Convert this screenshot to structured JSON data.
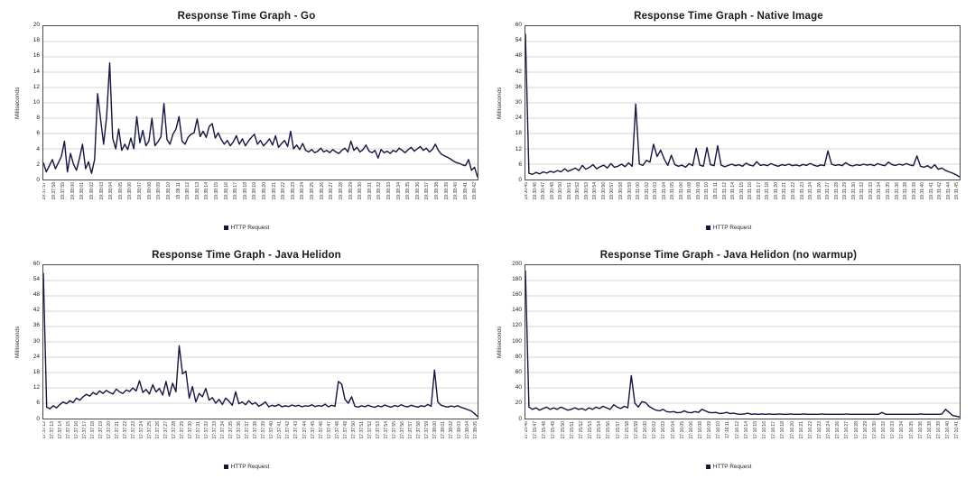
{
  "page": {
    "background": "#ffffff",
    "line_color": "#15153f",
    "grid_color": "#d6d6d6"
  },
  "chart_data": [
    {
      "type": "line",
      "title": "Response Time Graph - Go",
      "ylabel": "Milliseconds",
      "xlabel": "",
      "ylim": [
        0,
        20
      ],
      "ytick_step": 2,
      "grid": true,
      "legend_position": "bottom",
      "line_color": "#15153f",
      "grid_color": "#d6d6d6",
      "x_labels": [
        "19:37:57",
        "19:37:58",
        "19:37:59",
        "19:38:00",
        "19:38:01",
        "19:38:02",
        "19:38:03",
        "19:38:04",
        "19:38:05",
        "19:38:06",
        "19:38:07",
        "19:38:08",
        "19:38:09",
        "19:38:10",
        "19:38:11",
        "19:38:12",
        "19:38:13",
        "19:38:14",
        "19:38:15",
        "19:38:16",
        "19:38:17",
        "19:38:18",
        "19:38:19",
        "19:38:20",
        "19:38:21",
        "19:38:22",
        "19:38:23",
        "19:38:24",
        "19:38:25",
        "19:38:26",
        "19:38:27",
        "19:38:28",
        "19:38:29",
        "19:38:30",
        "19:38:31",
        "19:38:32",
        "19:38:33",
        "19:38:34",
        "19:38:35",
        "19:38:36",
        "19:38:37",
        "19:38:38",
        "19:38:39",
        "19:38:40",
        "19:38:41",
        "19:38:42"
      ],
      "series": [
        {
          "name": "HTTP Request",
          "values": [
            2.2,
            1.0,
            1.8,
            2.6,
            1.4,
            2.2,
            3.0,
            5.0,
            1.0,
            3.4,
            2.0,
            1.2,
            2.8,
            4.6,
            1.4,
            2.3,
            0.8,
            2.6,
            11.2,
            7.8,
            4.6,
            8.2,
            15.2,
            5.4,
            4.0,
            6.6,
            3.8,
            4.6,
            3.9,
            5.4,
            4.0,
            8.2,
            4.8,
            6.4,
            4.4,
            5.0,
            8.0,
            4.4,
            4.9,
            5.6,
            9.9,
            5.2,
            4.6,
            5.9,
            6.6,
            8.2,
            5.0,
            4.6,
            5.5,
            5.9,
            6.1,
            7.9,
            5.6,
            6.3,
            5.5,
            6.9,
            7.3,
            5.4,
            6.1,
            5.2,
            4.6,
            5.1,
            4.4,
            4.9,
            5.7,
            4.6,
            5.3,
            4.4,
            5.0,
            5.5,
            5.9,
            4.6,
            5.1,
            4.4,
            4.8,
            5.3,
            4.5,
            5.7,
            4.2,
            4.7,
            5.1,
            4.3,
            6.3,
            4.0,
            4.5,
            3.9,
            4.7,
            3.8,
            3.6,
            3.9,
            3.5,
            3.7,
            4.1,
            3.6,
            3.8,
            3.5,
            3.9,
            3.6,
            3.4,
            3.8,
            4.1,
            3.6,
            5.0,
            3.8,
            4.2,
            3.6,
            3.9,
            4.5,
            3.7,
            3.5,
            3.8,
            2.8,
            3.9,
            3.5,
            3.7,
            3.4,
            3.8,
            3.6,
            4.1,
            3.8,
            3.5,
            3.9,
            4.2,
            3.7,
            4.0,
            4.3,
            3.8,
            4.1,
            3.6,
            3.9,
            4.6,
            3.8,
            3.3,
            3.1,
            2.9,
            2.7,
            2.4,
            2.2,
            2.1,
            1.9,
            1.8,
            2.6,
            1.2,
            1.6,
            0.3
          ]
        }
      ]
    },
    {
      "type": "line",
      "title": "Response Time Graph - Native Image",
      "ylabel": "Milliseconds",
      "xlabel": "",
      "ylim": [
        0,
        60
      ],
      "ytick_step": 6,
      "grid": true,
      "legend_position": "bottom",
      "line_color": "#15153f",
      "grid_color": "#d6d6d6",
      "x_labels": [
        "19:30:45",
        "19:30:46",
        "19:30:47",
        "19:30:48",
        "19:30:50",
        "19:30:51",
        "19:30:52",
        "19:30:53",
        "19:30:54",
        "19:30:56",
        "19:30:57",
        "19:30:58",
        "19:30:59",
        "19:31:00",
        "19:31:02",
        "19:31:03",
        "19:31:04",
        "19:31:05",
        "19:31:06",
        "19:31:08",
        "19:31:09",
        "19:31:10",
        "19:31:11",
        "19:31:12",
        "19:31:14",
        "19:31:15",
        "19:31:16",
        "19:31:17",
        "19:31:18",
        "19:31:20",
        "19:31:21",
        "19:31:22",
        "19:31:23",
        "19:31:24",
        "19:31:26",
        "19:31:27",
        "19:31:28",
        "19:31:29",
        "19:31:30",
        "19:31:32",
        "19:31:33",
        "19:31:34",
        "19:31:35",
        "19:31:36",
        "19:31:38",
        "19:31:39",
        "19:31:40",
        "19:31:41",
        "19:31:42",
        "19:31:44",
        "19:31:45"
      ],
      "series": [
        {
          "name": "HTTP Request",
          "values": [
            57,
            2.4,
            2.0,
            2.8,
            2.2,
            3.0,
            2.5,
            3.2,
            2.8,
            3.5,
            3.0,
            4.2,
            3.2,
            3.8,
            4.5,
            3.5,
            5.5,
            4.0,
            4.8,
            5.8,
            4.2,
            5.0,
            5.6,
            4.5,
            6.2,
            4.8,
            5.2,
            6.0,
            5.0,
            6.5,
            5.2,
            29.5,
            6.0,
            5.5,
            7.5,
            6.8,
            13.8,
            9.0,
            11.5,
            8.0,
            5.5,
            9.5,
            5.8,
            5.2,
            5.6,
            4.8,
            6.2,
            5.4,
            12.2,
            5.6,
            5.2,
            12.5,
            5.8,
            5.4,
            13.2,
            5.6,
            5.0,
            5.5,
            6.0,
            5.4,
            5.8,
            5.2,
            6.4,
            5.6,
            5.3,
            7.0,
            5.5,
            5.8,
            5.4,
            6.2,
            5.6,
            5.2,
            5.8,
            5.5,
            6.0,
            5.4,
            5.7,
            5.3,
            5.9,
            5.5,
            6.3,
            5.6,
            5.2,
            5.7,
            5.4,
            11.2,
            6.0,
            5.5,
            5.8,
            5.4,
            6.6,
            5.6,
            5.3,
            5.8,
            5.5,
            6.0,
            5.6,
            5.9,
            5.4,
            6.2,
            5.7,
            5.4,
            6.8,
            5.8,
            5.5,
            6.0,
            5.6,
            6.2,
            5.7,
            5.4,
            9.2,
            5.2,
            4.8,
            5.4,
            4.4,
            5.8,
            4.0,
            4.5,
            3.6,
            3.0,
            2.5,
            1.8,
            1.0
          ]
        }
      ]
    },
    {
      "type": "line",
      "title": "Response Time Graph - Java Helidon",
      "ylabel": "Milliseconds",
      "xlabel": "",
      "ylim": [
        0,
        60
      ],
      "ytick_step": 6,
      "grid": true,
      "legend_position": "bottom",
      "line_color": "#15153f",
      "grid_color": "#d6d6d6",
      "x_labels": [
        "17:37:12",
        "17:37:13",
        "17:37:14",
        "17:37:15",
        "17:37:16",
        "17:37:17",
        "17:37:18",
        "17:37:19",
        "17:37:20",
        "17:37:21",
        "17:37:22",
        "17:37:23",
        "17:37:24",
        "17:37:25",
        "17:37:26",
        "17:37:27",
        "17:37:28",
        "17:37:29",
        "17:37:30",
        "17:37:31",
        "17:37:32",
        "17:37:33",
        "17:37:34",
        "17:37:35",
        "17:37:36",
        "17:37:37",
        "17:37:38",
        "17:37:39",
        "17:37:40",
        "17:37:41",
        "17:37:42",
        "17:37:43",
        "17:37:44",
        "17:37:45",
        "17:37:46",
        "17:37:47",
        "17:37:48",
        "17:37:49",
        "17:37:50",
        "17:37:51",
        "17:37:52",
        "17:37:53",
        "17:37:54",
        "17:37:55",
        "17:37:56",
        "17:37:57",
        "17:37:58",
        "17:37:59",
        "17:38:00",
        "17:38:01",
        "17:38:02",
        "17:38:03",
        "17:38:04",
        "17:38:05"
      ],
      "series": [
        {
          "name": "HTTP Request",
          "values": [
            57,
            4.5,
            3.8,
            5.0,
            4.2,
            5.5,
            6.5,
            5.8,
            7.0,
            6.2,
            8.0,
            7.2,
            8.5,
            9.5,
            8.8,
            10.2,
            9.4,
            10.8,
            9.8,
            11.0,
            10.2,
            9.6,
            11.5,
            10.4,
            9.8,
            11.2,
            10.6,
            12.0,
            10.8,
            14.8,
            10.2,
            11.4,
            9.6,
            13.2,
            10.4,
            11.8,
            9.2,
            14.5,
            8.8,
            13.8,
            10.5,
            28.5,
            17.5,
            18.5,
            8.0,
            12.5,
            6.5,
            9.8,
            8.5,
            11.8,
            7.2,
            8.2,
            6.0,
            7.5,
            5.5,
            8.0,
            6.8,
            5.2,
            10.5,
            5.8,
            6.5,
            5.4,
            7.0,
            5.6,
            6.2,
            4.8,
            5.5,
            6.5,
            4.6,
            5.2,
            4.8,
            5.5,
            4.6,
            5.0,
            4.7,
            5.3,
            4.8,
            5.2,
            4.6,
            5.0,
            4.8,
            5.4,
            4.7,
            5.1,
            4.8,
            5.6,
            4.6,
            5.2,
            4.8,
            14.5,
            13.5,
            7.5,
            6.0,
            8.5,
            4.8,
            4.5,
            5.0,
            4.6,
            5.2,
            4.7,
            4.4,
            5.0,
            4.6,
            5.3,
            4.8,
            4.5,
            5.1,
            4.7,
            5.4,
            4.8,
            4.6,
            5.2,
            4.8,
            4.5,
            5.0,
            4.7,
            5.5,
            4.8,
            19.0,
            6.5,
            5.2,
            4.8,
            4.5,
            4.9,
            4.6,
            5.0,
            4.4,
            4.0,
            3.5,
            3.0,
            2.0,
            0.8
          ]
        }
      ]
    },
    {
      "type": "line",
      "title": "Response Time Graph - Java Helidon (no warmup)",
      "ylabel": "Milliseconds",
      "xlabel": "",
      "ylim": [
        0,
        200
      ],
      "ytick_step": 20,
      "grid": true,
      "legend_position": "bottom",
      "line_color": "#15153f",
      "grid_color": "#d6d6d6",
      "x_labels": [
        "17:15:46",
        "17:15:47",
        "17:15:48",
        "17:15:49",
        "17:15:50",
        "17:15:51",
        "17:15:52",
        "17:15:53",
        "17:15:54",
        "17:15:56",
        "17:15:57",
        "17:15:58",
        "17:15:59",
        "17:16:00",
        "17:16:02",
        "17:16:03",
        "17:16:04",
        "17:16:05",
        "17:16:06",
        "17:16:08",
        "17:16:09",
        "17:16:10",
        "17:16:11",
        "17:16:12",
        "17:16:14",
        "17:16:15",
        "17:16:16",
        "17:16:17",
        "17:16:18",
        "17:16:20",
        "17:16:21",
        "17:16:22",
        "17:16:23",
        "17:16:24",
        "17:16:26",
        "17:16:27",
        "17:16:28",
        "17:16:29",
        "17:16:30",
        "17:16:32",
        "17:16:33",
        "17:16:34",
        "17:16:35",
        "17:16:36",
        "17:16:38",
        "17:16:39",
        "17:16:40",
        "17:16:41"
      ],
      "series": [
        {
          "name": "HTTP Request",
          "values": [
            193,
            15,
            12,
            14,
            11,
            13,
            15,
            12,
            14,
            12,
            15,
            13,
            11,
            12,
            14,
            12,
            13,
            11,
            14,
            12,
            15,
            13,
            16,
            14,
            12,
            18,
            15,
            13,
            16,
            14,
            56,
            20,
            15,
            22,
            21,
            16,
            13,
            11,
            10,
            12,
            9,
            8.5,
            9,
            7.5,
            8,
            10,
            8,
            7.5,
            9,
            8,
            12,
            10,
            8,
            7.5,
            8,
            6.5,
            7,
            8,
            6.5,
            7,
            6,
            5.5,
            6,
            7,
            5.5,
            6,
            5.5,
            6,
            5.5,
            6,
            5.5,
            5.5,
            6,
            5.5,
            5.5,
            6,
            5.5,
            5.5,
            5.5,
            6,
            5.5,
            5.5,
            5.5,
            5.5,
            6,
            5.5,
            5.5,
            5.5,
            5.5,
            5.5,
            5.5,
            6,
            5.5,
            5.5,
            5.5,
            5.5,
            5.5,
            5.5,
            5.5,
            5.5,
            5.5,
            8,
            5.5,
            5.5,
            5.5,
            5.5,
            5.5,
            5.5,
            5.5,
            5.5,
            5.5,
            5.5,
            6,
            5.5,
            5.5,
            5.5,
            5.5,
            5.5,
            6,
            12,
            8,
            4,
            3,
            2
          ]
        }
      ]
    }
  ]
}
